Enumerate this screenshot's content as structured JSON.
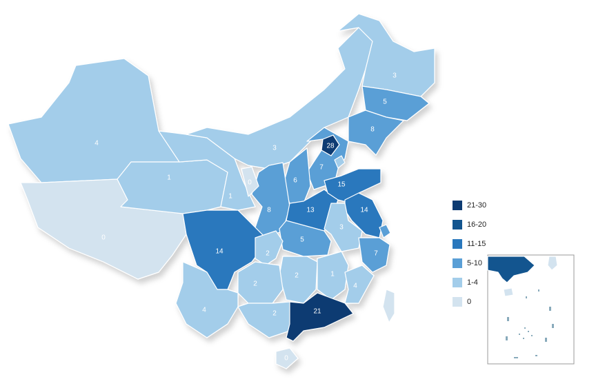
{
  "map": {
    "regions": [
      4,
      0,
      1,
      1,
      3,
      3,
      5,
      8,
      28,
      7,
      6,
      8,
      0,
      13,
      15,
      14,
      3,
      5,
      7,
      14,
      2,
      2,
      1,
      4,
      2,
      4,
      2,
      21,
      0
    ],
    "legend": [
      {
        "label": "21-30",
        "color": "#0d3b72"
      },
      {
        "label": "16-20",
        "color": "#13558f"
      },
      {
        "label": "11-15",
        "color": "#2a78bd"
      },
      {
        "label": "5-10",
        "color": "#5a9fd6"
      },
      {
        "label": "1-4",
        "color": "#a3cdea"
      },
      {
        "label": "0",
        "color": "#d3e3ef"
      }
    ]
  }
}
